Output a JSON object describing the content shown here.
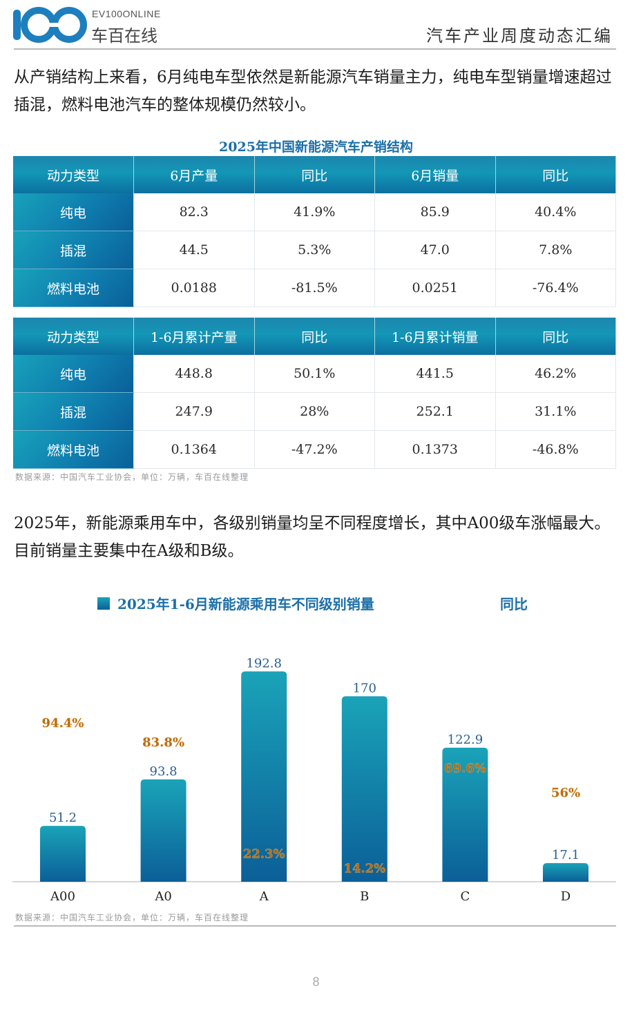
{
  "header": {
    "brand_en": "EV100ONLINE",
    "brand_cn": "车百在线",
    "title": "汽车产业周度动态汇编",
    "logo_text": "100"
  },
  "paragraph1": "从产销结构上来看，6月纯电车型依然是新能源汽车销量主力，纯电车型销量增速超过插混，燃料电池汽车的整体规模仍然较小。",
  "table": {
    "title": "2025年中国新能源汽车产销结构",
    "monthly": {
      "headers": [
        "动力类型",
        "6月产量",
        "同比",
        "6月销量",
        "同比"
      ],
      "rows": [
        [
          "纯电",
          "82.3",
          "41.9%",
          "85.9",
          "40.4%"
        ],
        [
          "插混",
          "44.5",
          "5.3%",
          "47.0",
          "7.8%"
        ],
        [
          "燃料电池",
          "0.0188",
          "-81.5%",
          "0.0251",
          "-76.4%"
        ]
      ]
    },
    "cumulative": {
      "headers": [
        "动力类型",
        "1-6月累计产量",
        "同比",
        "1-6月累计销量",
        "同比"
      ],
      "rows": [
        [
          "纯电",
          "448.8",
          "50.1%",
          "441.5",
          "46.2%"
        ],
        [
          "插混",
          "247.9",
          "28%",
          "252.1",
          "31.1%"
        ],
        [
          "燃料电池",
          "0.1364",
          "-47.2%",
          "0.1373",
          "-46.8%"
        ]
      ]
    },
    "source": "数据来源：中国汽车工业协会，单位：万辆，车百在线整理"
  },
  "paragraph2": "2025年，新能源乘用车中，各级别销量均呈不同程度增长，其中A00级车涨幅最大。目前销量主要集中在A级和B级。",
  "chart_data": {
    "type": "bar",
    "legend": [
      "2025年1-6月新能源乘用车不同级别销量",
      "同比"
    ],
    "categories": [
      "A00",
      "A0",
      "A",
      "B",
      "C",
      "D"
    ],
    "series": [
      {
        "name": "2025年1-6月新能源乘用车不同级别销量",
        "values": [
          51.2,
          93.8,
          192.8,
          170,
          122.9,
          17.1
        ],
        "labels": [
          "51.2",
          "93.8",
          "192.8",
          "170",
          "122.9",
          "17.1"
        ]
      },
      {
        "name": "同比",
        "values": [
          94.4,
          83.8,
          22.3,
          14.2,
          69.6,
          56
        ],
        "labels": [
          "94.4%",
          "83.8%",
          "22.3%",
          "14.2%",
          "69.6%",
          "56%"
        ]
      }
    ],
    "ylim": [
      0,
      200
    ],
    "yoy_lim": [
      0,
      160
    ],
    "colors": {
      "bar_top": "#1aa3b8",
      "bar_bottom": "#0b5f98",
      "bar_label": "#2a5f8f",
      "yoy_label": "#b86a12",
      "legend_text": "#1b6fa8"
    }
  },
  "chart_source": "数据来源：中国汽车工业协会，单位：万辆，车百在线整理",
  "page_number": "8"
}
